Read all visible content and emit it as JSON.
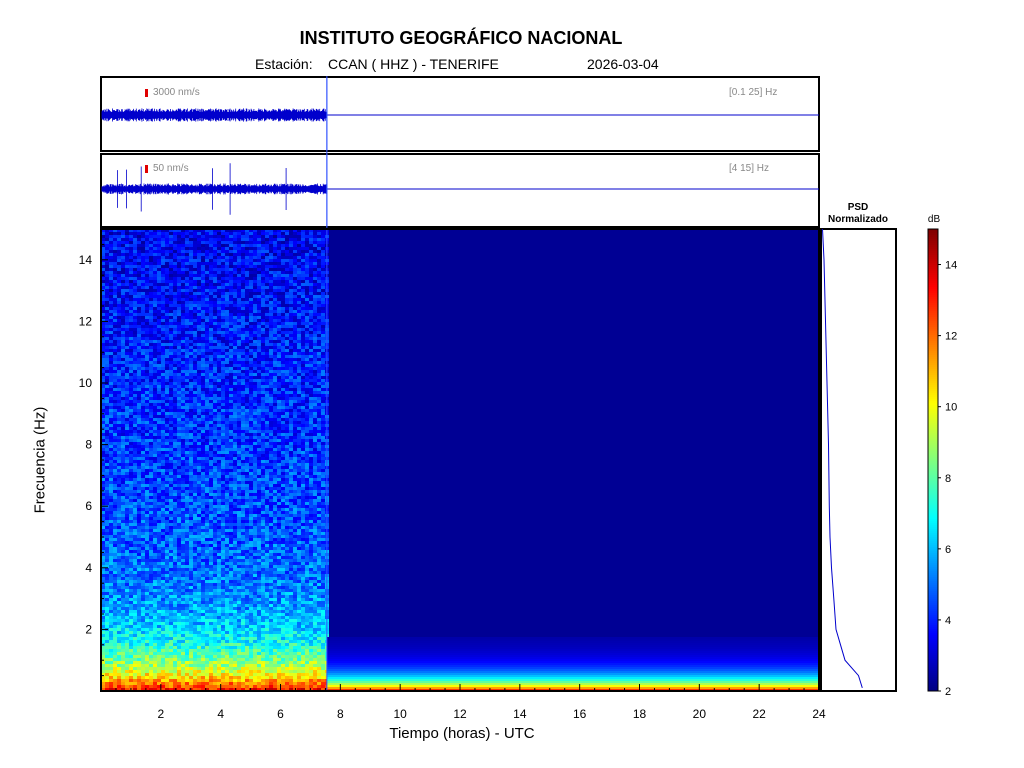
{
  "header": {
    "title": "INSTITUTO GEOGRÁFICO NACIONAL",
    "station_prefix": "Estación:",
    "station": "CCAN ( HHZ ) - TENERIFE",
    "date": "2026-03-04"
  },
  "psd_panel": {
    "title_line1": "PSD",
    "title_line2": "Normalizado"
  },
  "colorbar": {
    "unit": "dB",
    "ticks": [
      "2",
      "4",
      "6",
      "8",
      "10",
      "12",
      "14"
    ],
    "range": [
      2,
      15
    ]
  },
  "waveforms": [
    {
      "scale_label": "3000 nm/s",
      "band_label": "[0.1 25] Hz",
      "color": "#0000cc"
    },
    {
      "scale_label": "50 nm/s",
      "band_label": "[4 15] Hz",
      "color": "#0000cc"
    }
  ],
  "chart_data": {
    "type": "heatmap",
    "title": "INSTITUTO GEOGRÁFICO NACIONAL",
    "xlabel": "Tiempo (horas) - UTC",
    "ylabel": "Frecuencia  (Hz)",
    "xlim": [
      0,
      24
    ],
    "ylim": [
      0,
      15
    ],
    "x_ticks": [
      2,
      4,
      6,
      8,
      10,
      12,
      14,
      16,
      18,
      20,
      22,
      24
    ],
    "y_ticks": [
      2,
      4,
      6,
      8,
      10,
      12,
      14
    ],
    "data_end_hour": 7.55,
    "colormap": "jet",
    "color_range_db": [
      2,
      15
    ],
    "psd_profile": {
      "freq_hz": [
        0.1,
        0.5,
        1,
        1.5,
        2,
        3,
        4,
        5,
        6,
        8,
        10,
        12,
        14,
        15
      ],
      "normalized": [
        0.55,
        0.5,
        0.32,
        0.26,
        0.2,
        0.17,
        0.14,
        0.12,
        0.11,
        0.1,
        0.08,
        0.06,
        0.04,
        0.02
      ]
    }
  }
}
